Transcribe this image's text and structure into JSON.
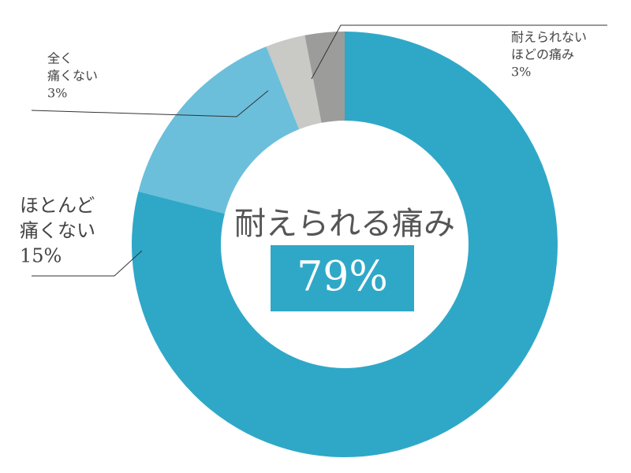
{
  "chart_data": {
    "type": "donut",
    "categories": [
      [
        "耐えられる痛み"
      ],
      [
        "ほとんど",
        "痛くない"
      ],
      [
        "全く",
        "痛くない"
      ],
      [
        "耐えられない",
        "ほどの痛み"
      ]
    ],
    "values": [
      79,
      15,
      3,
      3
    ],
    "value_labels": [
      "79%",
      "15%",
      "3%",
      "3%"
    ],
    "colors": [
      "#2fa8c8",
      "#6bbfdb",
      "#c9c9c5",
      "#9c9d9b"
    ]
  }
}
